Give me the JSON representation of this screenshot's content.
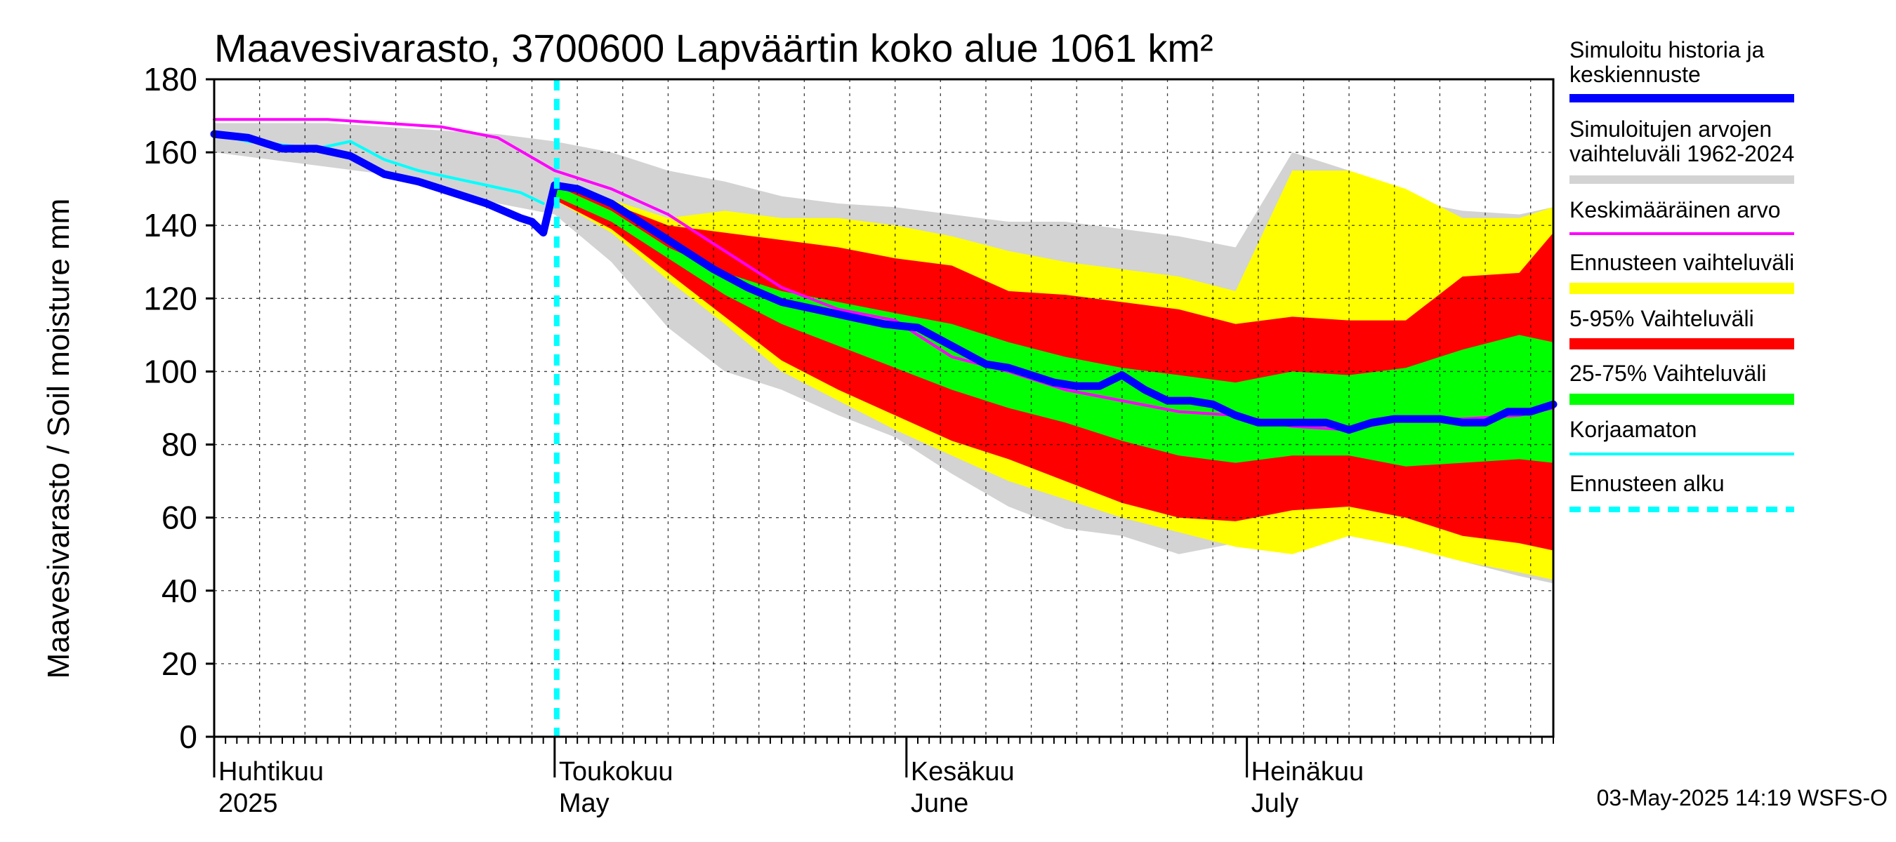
{
  "chart_data": {
    "type": "area",
    "title": "Maavesivarasto, 3700600 Lapväärtin koko alue 1061 km²",
    "ylabel": "Maavesivarasto / Soil moisture   mm",
    "ylim": [
      0,
      180
    ],
    "yticks": [
      0,
      20,
      40,
      60,
      80,
      100,
      120,
      140,
      160,
      180
    ],
    "xrange_days": [
      0,
      118
    ],
    "forecast_start_day": 30,
    "months": [
      {
        "fi": "Huhtikuu",
        "en": "2025",
        "day": 0
      },
      {
        "fi": "Toukokuu",
        "en": "May",
        "day": 30
      },
      {
        "fi": "Kesäkuu",
        "en": "June",
        "day": 61
      },
      {
        "fi": "Heinäkuu",
        "en": "July",
        "day": 91
      }
    ],
    "colors": {
      "history": "#0000ff",
      "hist_range": "#d3d3d3",
      "mean": "#ff00ff",
      "forecast_range": "#ffff00",
      "p5_95": "#ff0000",
      "p25_75": "#00ff00",
      "uncorrected": "#00ffff",
      "forecast_start": "#00ffff"
    },
    "series": [
      {
        "name": "hist_range_upper",
        "x": [
          0,
          5,
          10,
          15,
          20,
          25,
          30,
          35,
          40,
          45,
          50,
          55,
          60,
          65,
          70,
          75,
          80,
          85,
          90,
          95,
          100,
          105,
          110,
          115,
          118
        ],
        "values": [
          168,
          168,
          168,
          167,
          166,
          165,
          163,
          160,
          155,
          152,
          148,
          146,
          145,
          143,
          141,
          141,
          139,
          137,
          134,
          160,
          155,
          147,
          144,
          143,
          145
        ]
      },
      {
        "name": "hist_range_lower",
        "x": [
          0,
          5,
          10,
          15,
          20,
          25,
          30,
          35,
          40,
          45,
          50,
          55,
          60,
          65,
          70,
          75,
          80,
          85,
          90,
          95,
          100,
          105,
          110,
          115,
          118
        ],
        "values": [
          160,
          158,
          156,
          154,
          150,
          146,
          143,
          130,
          112,
          100,
          95,
          88,
          82,
          72,
          63,
          57,
          55,
          50,
          53,
          57,
          55,
          52,
          48,
          44,
          42
        ]
      },
      {
        "name": "forecast_range_upper",
        "x": [
          30,
          35,
          40,
          45,
          50,
          55,
          60,
          65,
          70,
          75,
          80,
          85,
          90,
          95,
          100,
          105,
          110,
          115,
          118
        ],
        "values": [
          152,
          147,
          142,
          144,
          142,
          142,
          140,
          137,
          133,
          130,
          128,
          126,
          122,
          155,
          155,
          150,
          142,
          142,
          145
        ]
      },
      {
        "name": "forecast_range_lower",
        "x": [
          30,
          35,
          40,
          45,
          50,
          55,
          60,
          65,
          70,
          75,
          80,
          85,
          90,
          95,
          100,
          105,
          110,
          115,
          118
        ],
        "values": [
          147,
          138,
          125,
          113,
          100,
          92,
          84,
          77,
          70,
          65,
          60,
          56,
          52,
          50,
          55,
          52,
          48,
          45,
          43
        ]
      },
      {
        "name": "p5_95_upper",
        "x": [
          30,
          35,
          40,
          45,
          50,
          55,
          60,
          65,
          70,
          75,
          80,
          85,
          90,
          95,
          100,
          105,
          110,
          115,
          118
        ],
        "values": [
          152,
          146,
          140,
          138,
          136,
          134,
          131,
          129,
          122,
          121,
          119,
          117,
          113,
          115,
          114,
          114,
          126,
          127,
          138
        ]
      },
      {
        "name": "p5_95_lower",
        "x": [
          30,
          35,
          40,
          45,
          50,
          55,
          60,
          65,
          70,
          75,
          80,
          85,
          90,
          95,
          100,
          105,
          110,
          115,
          118
        ],
        "values": [
          147,
          139,
          127,
          115,
          103,
          95,
          88,
          81,
          76,
          70,
          64,
          60,
          59,
          62,
          63,
          60,
          55,
          53,
          51
        ]
      },
      {
        "name": "p25_75_upper",
        "x": [
          30,
          35,
          40,
          45,
          50,
          55,
          60,
          65,
          70,
          75,
          80,
          85,
          90,
          95,
          100,
          105,
          110,
          115,
          118
        ],
        "values": [
          151,
          144,
          134,
          127,
          122,
          119,
          116,
          113,
          108,
          104,
          101,
          99,
          97,
          100,
          99,
          101,
          106,
          110,
          108
        ]
      },
      {
        "name": "p25_75_lower",
        "x": [
          30,
          35,
          40,
          45,
          50,
          55,
          60,
          65,
          70,
          75,
          80,
          85,
          90,
          95,
          100,
          105,
          110,
          115,
          118
        ],
        "values": [
          148,
          141,
          131,
          121,
          113,
          107,
          101,
          95,
          90,
          86,
          81,
          77,
          75,
          77,
          77,
          74,
          75,
          76,
          75
        ]
      },
      {
        "name": "Simuloitu historia ja keskiennuste",
        "x": [
          0,
          3,
          6,
          9,
          12,
          15,
          18,
          21,
          24,
          27,
          28,
          29,
          30,
          32,
          35,
          38,
          41,
          44,
          47,
          50,
          53,
          56,
          59,
          62,
          65,
          68,
          70,
          72,
          74,
          76,
          78,
          80,
          82,
          84,
          86,
          88,
          90,
          92,
          94,
          96,
          98,
          100,
          102,
          104,
          106,
          108,
          110,
          112,
          114,
          116,
          118
        ],
        "values": [
          165,
          164,
          161,
          161,
          159,
          154,
          152,
          149,
          146,
          142,
          141,
          138,
          151,
          150,
          146,
          140,
          134,
          128,
          123,
          119,
          117,
          115,
          113,
          112,
          107,
          102,
          101,
          99,
          97,
          96,
          96,
          99,
          95,
          92,
          92,
          91,
          88,
          86,
          86,
          86,
          86,
          84,
          86,
          87,
          87,
          87,
          86,
          86,
          89,
          89,
          91
        ]
      },
      {
        "name": "Keskimääräinen arvo",
        "x": [
          0,
          5,
          10,
          15,
          20,
          25,
          30,
          35,
          40,
          45,
          50,
          55,
          60,
          65,
          70,
          75,
          80,
          85,
          90,
          95,
          100,
          105,
          110,
          115,
          118
        ],
        "values": [
          169,
          169,
          169,
          168,
          167,
          164,
          155,
          150,
          143,
          133,
          123,
          117,
          114,
          104,
          100,
          95,
          92,
          89,
          88,
          85,
          84,
          87,
          87,
          88,
          90
        ]
      },
      {
        "name": "Korjaamaton",
        "x": [
          0,
          3,
          6,
          9,
          12,
          15,
          18,
          21,
          24,
          27,
          29
        ],
        "values": [
          165,
          163,
          162,
          161,
          163,
          158,
          155,
          153,
          151,
          149,
          146
        ]
      }
    ]
  },
  "legend": [
    {
      "key": "history",
      "label1": "Simuloitu historia ja",
      "label2": "keskiennuste"
    },
    {
      "key": "hist_range",
      "label1": "Simuloitujen arvojen",
      "label2": "vaihteluväli 1962-2024"
    },
    {
      "key": "mean",
      "label1": "Keskimääräinen arvo",
      "label2": ""
    },
    {
      "key": "forecast_range",
      "label1": "Ennusteen vaihteluväli",
      "label2": ""
    },
    {
      "key": "p5_95",
      "label1": "5-95% Vaihteluväli",
      "label2": ""
    },
    {
      "key": "p25_75",
      "label1": "25-75% Vaihteluväli",
      "label2": ""
    },
    {
      "key": "uncorrected",
      "label1": "Korjaamaton",
      "label2": ""
    },
    {
      "key": "forecast_start",
      "label1": "Ennusteen alku",
      "label2": ""
    }
  ],
  "timestamp": "03-May-2025 14:19 WSFS-O"
}
